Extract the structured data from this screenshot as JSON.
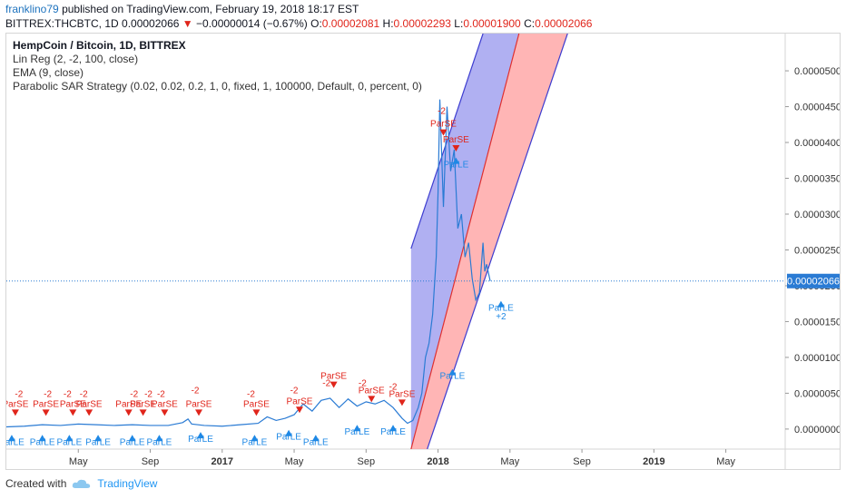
{
  "header": {
    "author": "franklino79",
    "published_text": "published on TradingView.com, February 19, 2018 18:17 EST",
    "symbol": "BITTREX:THCBTC, 1D",
    "last": "0.00002066",
    "change_arrow": "▼",
    "change": "−0.00000014 (−0.67%)",
    "open_label": "O:",
    "open": "0.00002081",
    "high_label": "H:",
    "high": "0.00002293",
    "low_label": "L:",
    "low": "0.00001900",
    "close_label": "C:",
    "close": "0.00002066"
  },
  "legend": {
    "title": "HempCoin / Bitcoin, 1D, BITTREX",
    "linreg": "Lin Reg (2, -2, 100, close)",
    "ema": "EMA (9, close)",
    "psar": "Parabolic SAR Strategy (0.02, 0.02, 0.2, 1, 0, fixed, 1, 100000, Default, 0, percent, 0)"
  },
  "footer": {
    "created_with": "Created with",
    "brand": "TradingView",
    "logo_icon": "tradingview-cloud-icon"
  },
  "colors": {
    "price_line": "#2a7bd4",
    "channel_upper": "#6f6fe8",
    "channel_lower": "#ff8e8e",
    "channel_mid": "#e03030",
    "signal_short": "#e0251b",
    "signal_long": "#1e88e5",
    "current_price_tag": "#2a7bd4"
  },
  "chart_data": {
    "type": "line",
    "title": "HempCoin / Bitcoin, 1D, BITTREX",
    "y_ticks": [
      "0.00005000",
      "0.00004500",
      "0.00004000",
      "0.00003500",
      "0.00003000",
      "0.00002500",
      "0.00002000",
      "0.00001500",
      "0.00001000",
      "0.00000500",
      "0.00000000"
    ],
    "y_tick_values": [
      5e-05,
      4.5e-05,
      4e-05,
      3.5e-05,
      3e-05,
      2.5e-05,
      2e-05,
      1.5e-05,
      1e-05,
      5e-06,
      0
    ],
    "ylim": [
      -2.8e-06,
      5.52e-05
    ],
    "x_ticks": [
      "May",
      "Sep",
      "2017",
      "May",
      "Sep",
      "2018",
      "May",
      "Sep",
      "2019",
      "May"
    ],
    "x_tick_months": [
      16.0,
      20.0,
      24.0,
      28.0,
      32.0,
      36.0,
      40.0,
      44.0,
      48.0,
      52.0
    ],
    "xlim": [
      12.0,
      55.3
    ],
    "current_price_label": "0.00002066",
    "current_price": 2.066e-05,
    "series": [
      {
        "name": "THCBTC",
        "x": [
          12.0,
          13,
          14,
          15,
          16,
          17,
          18,
          19,
          20,
          21,
          21.8,
          22.1,
          22.3,
          23,
          24,
          25,
          26,
          26.5,
          27,
          27.5,
          28,
          28.5,
          29,
          29.5,
          30,
          30.5,
          31,
          31.5,
          32,
          32.5,
          33,
          33.5,
          34,
          34.3,
          34.6,
          34.9,
          35.1,
          35.3,
          35.5,
          35.7,
          35.9,
          36.0,
          36.1,
          36.3,
          36.5,
          36.7,
          36.9,
          37.1,
          37.3,
          37.5,
          37.7,
          37.9,
          38.1,
          38.3,
          38.5,
          38.6,
          38.7,
          38.9
        ],
        "y": [
          3e-07,
          4e-07,
          6e-07,
          5e-07,
          7e-07,
          6e-07,
          5e-07,
          6e-07,
          5e-07,
          5e-07,
          9e-07,
          1.4e-06,
          7e-07,
          5e-07,
          4e-07,
          6e-07,
          8e-07,
          1.7e-06,
          1.2e-06,
          1.5e-06,
          2e-06,
          3.5e-06,
          2.5e-06,
          4e-06,
          4.3e-06,
          3e-06,
          4.2e-06,
          3.2e-06,
          3.8e-06,
          3.5e-06,
          4e-06,
          3e-06,
          1.5e-06,
          8e-07,
          1.2e-06,
          3e-06,
          5e-06,
          1e-05,
          1.2e-05,
          1.6e-05,
          2.4e-05,
          3.3e-05,
          4.6e-05,
          3.1e-05,
          4.5e-05,
          3.6e-05,
          3.9e-05,
          2.8e-05,
          3e-05,
          2.4e-05,
          2.6e-05,
          2.1e-05,
          1.8e-05,
          1.9e-05,
          2.6e-05,
          2.2e-05,
          2.3e-05,
          2.066e-05
        ]
      }
    ],
    "channel": {
      "upper_start": [
        34.5,
        2.52e-05
      ],
      "upper_end": [
        38.5,
        5.52e-05
      ],
      "mid_start": [
        34.5,
        -2.8e-06
      ],
      "mid_end": [
        40.5,
        5.52e-05
      ],
      "lower_start": [
        35.4,
        -2.8e-06
      ],
      "lower_end": [
        43.2,
        5.52e-05
      ]
    },
    "annotations": [
      {
        "text": "ParSE",
        "x": 12.5,
        "y": 3.1e-06
      },
      {
        "text": "-2",
        "x": 12.7,
        "y": 4.5e-06
      },
      {
        "text": "ParSE",
        "x": 14.2,
        "y": 3.1e-06
      },
      {
        "text": "-2",
        "x": 14.3,
        "y": 4.5e-06
      },
      {
        "text": "-2",
        "x": 15.4,
        "y": 4.5e-06
      },
      {
        "text": "ParSE",
        "x": 15.7,
        "y": 3.1e-06
      },
      {
        "text": "-2",
        "x": 16.3,
        "y": 4.5e-06
      },
      {
        "text": "ParSE",
        "x": 16.6,
        "y": 3.1e-06
      },
      {
        "text": "ParSE",
        "x": 18.8,
        "y": 3.1e-06
      },
      {
        "text": "-2",
        "x": 19.1,
        "y": 4.5e-06
      },
      {
        "text": "ParSE",
        "x": 19.6,
        "y": 3.1e-06
      },
      {
        "text": "-2",
        "x": 19.9,
        "y": 4.5e-06
      },
      {
        "text": "-2",
        "x": 20.6,
        "y": 4.5e-06
      },
      {
        "text": "ParSE",
        "x": 20.8,
        "y": 3.1e-06
      },
      {
        "text": "-2",
        "x": 22.5,
        "y": 5e-06
      },
      {
        "text": "ParSE",
        "x": 22.7,
        "y": 3.1e-06
      },
      {
        "text": "-2",
        "x": 25.6,
        "y": 4.5e-06
      },
      {
        "text": "ParSE",
        "x": 25.9,
        "y": 3.1e-06
      },
      {
        "text": "-2",
        "x": 28.0,
        "y": 5e-06
      },
      {
        "text": "ParSE",
        "x": 28.3,
        "y": 3.5e-06
      },
      {
        "text": "-2",
        "x": 29.8,
        "y": 6e-06
      },
      {
        "text": "ParSE",
        "x": 30.2,
        "y": 7e-06
      },
      {
        "text": "-2",
        "x": 31.8,
        "y": 6e-06
      },
      {
        "text": "ParSE",
        "x": 32.3,
        "y": 5e-06
      },
      {
        "text": "-2",
        "x": 33.5,
        "y": 5.5e-06
      },
      {
        "text": "ParSE",
        "x": 34.0,
        "y": 4.5e-06
      },
      {
        "text": "-2",
        "x": 36.2,
        "y": 4.4e-05
      },
      {
        "text": "ParSE",
        "x": 36.3,
        "y": 4.22e-05
      },
      {
        "text": "ParSE",
        "x": 37.0,
        "y": 4e-05
      },
      {
        "text": "ParLE",
        "x": 12.3,
        "y": -2.2e-06
      },
      {
        "text": "ParLE",
        "x": 14.0,
        "y": -2.2e-06
      },
      {
        "text": "ParLE",
        "x": 15.5,
        "y": -2.2e-06
      },
      {
        "text": "ParLE",
        "x": 17.1,
        "y": -2.2e-06
      },
      {
        "text": "ParLE",
        "x": 19.0,
        "y": -2.2e-06
      },
      {
        "text": "ParLE",
        "x": 20.5,
        "y": -2.2e-06
      },
      {
        "text": "ParLE",
        "x": 22.8,
        "y": -1.8e-06
      },
      {
        "text": "ParLE",
        "x": 25.8,
        "y": -2.2e-06
      },
      {
        "text": "ParLE",
        "x": 27.7,
        "y": -1.5e-06
      },
      {
        "text": "ParLE",
        "x": 29.2,
        "y": -2.2e-06
      },
      {
        "text": "ParLE",
        "x": 31.5,
        "y": -8e-07
      },
      {
        "text": "ParLE",
        "x": 33.5,
        "y": -8e-07
      },
      {
        "text": "ParLE",
        "x": 36.8,
        "y": 7e-06
      },
      {
        "text": "ParLE",
        "x": 37.0,
        "y": 3.65e-05
      },
      {
        "text": "ParLE",
        "x": 39.5,
        "y": 1.65e-05
      },
      {
        "text": "+2",
        "x": 39.5,
        "y": 1.53e-05
      }
    ]
  }
}
